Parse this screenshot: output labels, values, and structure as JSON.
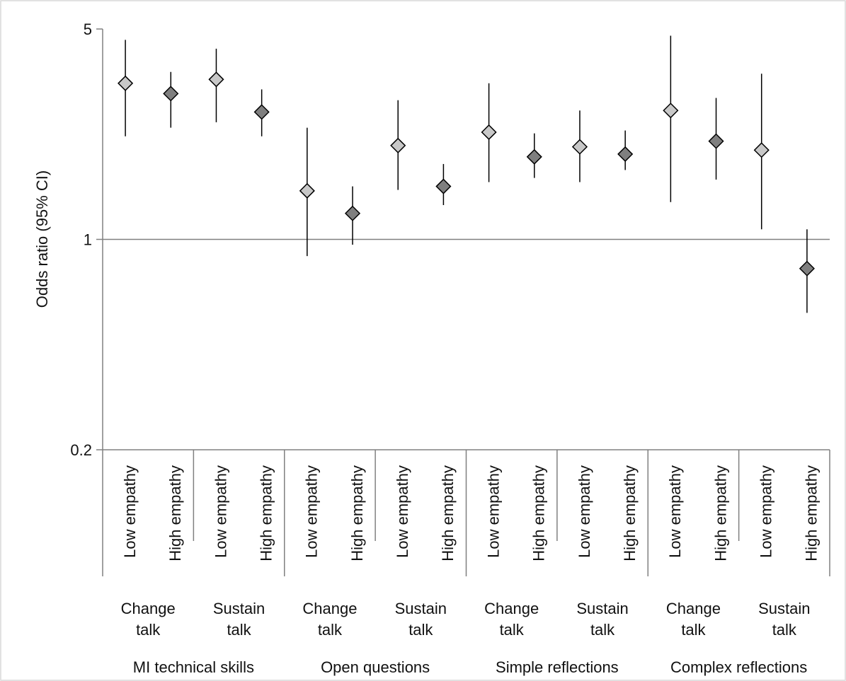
{
  "chart_data": {
    "type": "scatter",
    "title": "",
    "ylabel": "Odds ratio (95% CI)",
    "y_scale": "log",
    "ylim": [
      0.2,
      5
    ],
    "yticks": [
      {
        "value": 0.2,
        "label": "0.2"
      },
      {
        "value": 1,
        "label": "1"
      },
      {
        "value": 5,
        "label": "5"
      }
    ],
    "reference_line": 1,
    "grid": false,
    "legend": "none",
    "colors": {
      "low_empathy": "#c8c8c8",
      "high_empathy": "#7f7f7f",
      "marker_edge": "#000000",
      "axis": "#808080",
      "whisker": "#000000"
    },
    "groups": [
      {
        "label": "MI technical skills",
        "subgroups": [
          "Change talk",
          "Sustain talk"
        ]
      },
      {
        "label": "Open questions",
        "subgroups": [
          "Change talk",
          "Sustain talk"
        ]
      },
      {
        "label": "Simple reflections",
        "subgroups": [
          "Change talk",
          "Sustain talk"
        ]
      },
      {
        "label": "Complex reflections",
        "subgroups": [
          "Change talk",
          "Sustain talk"
        ]
      }
    ],
    "category_label_lines": {
      "Change talk": [
        "Change",
        "talk"
      ],
      "Sustain talk": [
        "Sustain",
        "talk"
      ]
    },
    "categories": [
      "Low empathy",
      "High empathy",
      "Low empathy",
      "High empathy",
      "Low empathy",
      "High empathy",
      "Low empathy",
      "High empathy",
      "Low empathy",
      "High empathy",
      "Low empathy",
      "High empathy",
      "Low empathy",
      "High empathy",
      "Low empathy",
      "High empathy"
    ],
    "points": [
      {
        "group": "MI technical skills",
        "talk": "Change talk",
        "empathy": "Low empathy",
        "estimate": 3.3,
        "lower": 2.2,
        "upper": 4.6
      },
      {
        "group": "MI technical skills",
        "talk": "Change talk",
        "empathy": "High empathy",
        "estimate": 3.05,
        "lower": 2.35,
        "upper": 3.6
      },
      {
        "group": "MI technical skills",
        "talk": "Sustain talk",
        "empathy": "Low empathy",
        "estimate": 3.4,
        "lower": 2.45,
        "upper": 4.3
      },
      {
        "group": "MI technical skills",
        "talk": "Sustain talk",
        "empathy": "High empathy",
        "estimate": 2.65,
        "lower": 2.2,
        "upper": 3.15
      },
      {
        "group": "Open questions",
        "talk": "Change talk",
        "empathy": "Low empathy",
        "estimate": 1.45,
        "lower": 0.88,
        "upper": 2.35
      },
      {
        "group": "Open questions",
        "talk": "Change talk",
        "empathy": "High empathy",
        "estimate": 1.22,
        "lower": 0.96,
        "upper": 1.5
      },
      {
        "group": "Open questions",
        "talk": "Sustain talk",
        "empathy": "Low empathy",
        "estimate": 2.05,
        "lower": 1.46,
        "upper": 2.9
      },
      {
        "group": "Open questions",
        "talk": "Sustain talk",
        "empathy": "High empathy",
        "estimate": 1.5,
        "lower": 1.3,
        "upper": 1.78
      },
      {
        "group": "Simple reflections",
        "talk": "Change talk",
        "empathy": "Low empathy",
        "estimate": 2.27,
        "lower": 1.55,
        "upper": 3.3
      },
      {
        "group": "Simple reflections",
        "talk": "Change talk",
        "empathy": "High empathy",
        "estimate": 1.88,
        "lower": 1.6,
        "upper": 2.25
      },
      {
        "group": "Simple reflections",
        "talk": "Sustain talk",
        "empathy": "Low empathy",
        "estimate": 2.03,
        "lower": 1.55,
        "upper": 2.68
      },
      {
        "group": "Simple reflections",
        "talk": "Sustain talk",
        "empathy": "High empathy",
        "estimate": 1.92,
        "lower": 1.7,
        "upper": 2.3
      },
      {
        "group": "Complex reflections",
        "talk": "Change talk",
        "empathy": "Low empathy",
        "estimate": 2.68,
        "lower": 1.33,
        "upper": 4.75
      },
      {
        "group": "Complex reflections",
        "talk": "Change talk",
        "empathy": "High empathy",
        "estimate": 2.12,
        "lower": 1.58,
        "upper": 2.95
      },
      {
        "group": "Complex reflections",
        "talk": "Sustain talk",
        "empathy": "Low empathy",
        "estimate": 1.98,
        "lower": 1.08,
        "upper": 3.55
      },
      {
        "group": "Complex reflections",
        "talk": "Sustain talk",
        "empathy": "High empathy",
        "estimate": 0.8,
        "lower": 0.57,
        "upper": 1.08
      }
    ]
  }
}
